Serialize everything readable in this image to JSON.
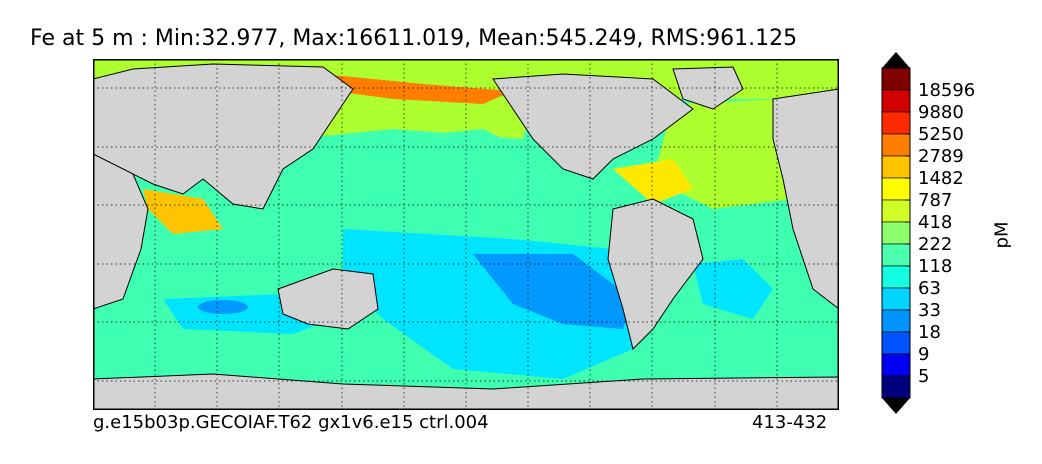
{
  "title": "Fe at 5 m : Min:32.977, Max:16611.019, Mean:545.249, RMS:961.125",
  "footer": {
    "run_id": "g.e15b03p.GECOIAF.T62 gx1v6.e15 ctrl.004",
    "years": "413-432"
  },
  "colors": {
    "land": "#d3d3d3",
    "open_ocean_low": "#00e5ff",
    "gyre_center": "#0099ff",
    "coastal": "#adff2f",
    "shelf_high": "#ffe800"
  },
  "chart_data": {
    "type": "heatmap",
    "title": "Fe at 5 m : Min:32.977, Max:16611.019, Mean:545.249, RMS:961.125",
    "variable": "Fe",
    "depth": "5 m",
    "stats": {
      "min": 32.977,
      "max": 16611.019,
      "mean": 545.249,
      "rms": 961.125
    },
    "projection": "global map, 20E to 380E",
    "grid": true,
    "colorbar": {
      "label": "pM",
      "placement": "right",
      "extend": "both",
      "ticks": [
        "18596",
        "9880",
        "5250",
        "2789",
        "1482",
        "787",
        "418",
        "222",
        "118",
        "63",
        "33",
        "18",
        "9",
        "5"
      ],
      "colors": [
        "#800000",
        "#d40000",
        "#ff2a00",
        "#ff7e00",
        "#ffc400",
        "#ffff00",
        "#d0ff28",
        "#8cff6a",
        "#4affad",
        "#14ffe2",
        "#00d4ff",
        "#0094ff",
        "#0054ff",
        "#0000f2",
        "#00007f"
      ]
    }
  }
}
